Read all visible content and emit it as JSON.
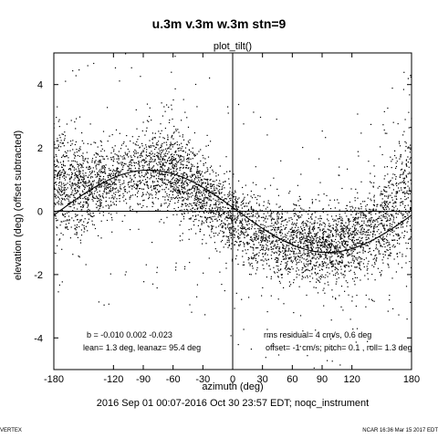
{
  "chart_data": {
    "type": "scatter",
    "title": "u.3m v.3m w.3m stn=9",
    "subtitle": "plot_tilt()",
    "xlabel": "azimuth (deg)",
    "ylabel": "elevation (deg)  (offset subtracted)",
    "xlim": [
      -180,
      180
    ],
    "ylim": [
      -5,
      5
    ],
    "xticks": [
      "-180",
      "-120",
      "-90",
      "-60",
      "-30",
      "0",
      "30",
      "60",
      "90",
      "120",
      "180"
    ],
    "yticks": [
      "4",
      "2",
      "0",
      "-2",
      "-4"
    ],
    "grid": false,
    "legend": "none",
    "reference_lines": {
      "horizontal_at": 0,
      "vertical_at": 0
    },
    "fit_curve": {
      "amplitude_deg": 1.3,
      "azimuth_of_max_deg": -84.6
    },
    "scatter_density": [
      {
        "x": -170,
        "y_center": 0.9,
        "spread": 0.9,
        "density": 1.0
      },
      {
        "x": -150,
        "y_center": 0.7,
        "spread": 0.7,
        "density": 1.0
      },
      {
        "x": -125,
        "y_center": 0.9,
        "spread": 0.6,
        "density": 0.8
      },
      {
        "x": -110,
        "y_center": 1.2,
        "spread": 0.5,
        "density": 0.5
      },
      {
        "x": -90,
        "y_center": 1.3,
        "spread": 0.6,
        "density": 0.7
      },
      {
        "x": -70,
        "y_center": 1.4,
        "spread": 0.7,
        "density": 1.0
      },
      {
        "x": -50,
        "y_center": 1.0,
        "spread": 0.7,
        "density": 1.0
      },
      {
        "x": -30,
        "y_center": 0.5,
        "spread": 0.6,
        "density": 1.0
      },
      {
        "x": -10,
        "y_center": 0.0,
        "spread": 0.6,
        "density": 0.8
      },
      {
        "x": 10,
        "y_center": -0.5,
        "spread": 0.6,
        "density": 0.7
      },
      {
        "x": 30,
        "y_center": -0.8,
        "spread": 0.6,
        "density": 0.7
      },
      {
        "x": 60,
        "y_center": -1.0,
        "spread": 0.6,
        "density": 0.9
      },
      {
        "x": 90,
        "y_center": -1.1,
        "spread": 0.6,
        "density": 1.0
      },
      {
        "x": 120,
        "y_center": -1.0,
        "spread": 0.6,
        "density": 0.9
      },
      {
        "x": 150,
        "y_center": -0.3,
        "spread": 0.8,
        "density": 0.8
      },
      {
        "x": 175,
        "y_center": 0.5,
        "spread": 1.1,
        "density": 0.9
      }
    ],
    "point_color": "#000000"
  },
  "stats": {
    "b_line": "b = -0.010  0.002 -0.023",
    "lean_line": "lean= 1.3 deg, leanaz= 95.4 deg",
    "rms_line": "rms residual= 4 cm/s, 0.6 deg",
    "offset_line": "offset= -1 cm/s; pitch= 0.1 , roll= 1.3 deg"
  },
  "time_range": "2016 Sep 01 00:07-2016 Oct 30 23:57 EDT; noqc_instrument",
  "footer": {
    "left": "VERTEX",
    "right": "NCAR 16:36 Mar 15 2017 EDT"
  }
}
